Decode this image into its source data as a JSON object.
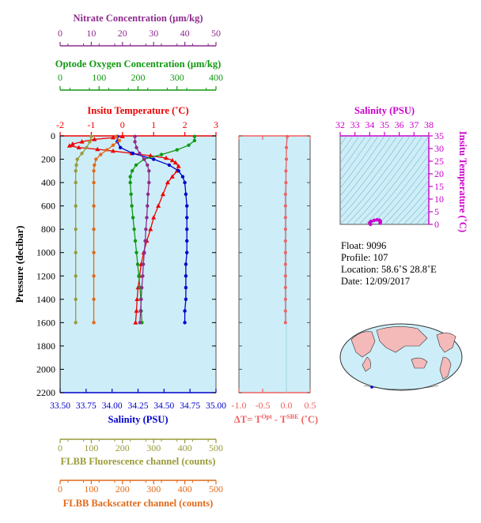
{
  "float_info": {
    "float_line": "Float:  9096",
    "profile_line": "Profile:  107",
    "location_line": "Location:  58.6˚S  28.8˚E",
    "date_line": "Date:  12/09/2017"
  },
  "colors": {
    "temperature": "#ee0000",
    "salinity": "#0000cc",
    "oxygen": "#119911",
    "nitrate": "#8e2b8e",
    "fluorescence": "#9a9a3a",
    "backscatter": "#e06a1a",
    "delta": "#f06060",
    "panel_bg": "#cdeef8",
    "ts_curve": "#cc00cc"
  },
  "chart_data": [
    {
      "type": "line",
      "name": "main-profile",
      "ylabel": "Pressure (decibar)",
      "ylim": [
        2200,
        0
      ],
      "yticks": [
        "0",
        "200",
        "400",
        "600",
        "800",
        "1000",
        "1200",
        "1400",
        "1600",
        "1800",
        "2000",
        "2200"
      ],
      "grid": false,
      "axes": {
        "nitrate": {
          "label": "Nitrate Concentration (μm/kg)",
          "range": [
            0,
            50
          ],
          "ticks": [
            "0",
            "10",
            "20",
            "30",
            "40",
            "50"
          ]
        },
        "oxygen": {
          "label": "Optode Oxygen Concentration (μm/kg)",
          "range": [
            0,
            400
          ],
          "ticks": [
            "0",
            "100",
            "200",
            "300",
            "400"
          ]
        },
        "temperature": {
          "label": "Insitu Temperature (˚C)",
          "range": [
            -2,
            3
          ],
          "ticks": [
            "-2",
            "-1",
            "0",
            "1",
            "2",
            "3"
          ]
        },
        "salinity": {
          "label": "Salinity (PSU)",
          "range": [
            33.5,
            35.0
          ],
          "ticks": [
            "33.50",
            "33.75",
            "34.00",
            "34.25",
            "34.50",
            "34.75",
            "35.00"
          ]
        },
        "fluorescence": {
          "label": "FLBB Fluorescence channel (counts)",
          "range": [
            0,
            500
          ],
          "ticks": [
            "0",
            "100",
            "200",
            "300",
            "400",
            "500"
          ]
        },
        "backscatter": {
          "label": "FLBB Backscatter channel (counts)",
          "range": [
            0,
            500
          ],
          "ticks": [
            "0",
            "100",
            "200",
            "300",
            "400",
            "500"
          ]
        }
      },
      "series": [
        {
          "key": "temperature",
          "marker": "triangle",
          "points": [
            [
              0.0,
              5
            ],
            [
              -0.3,
              15
            ],
            [
              -0.9,
              30
            ],
            [
              -1.3,
              50
            ],
            [
              -1.6,
              70
            ],
            [
              -1.7,
              85
            ],
            [
              -1.4,
              100
            ],
            [
              -0.8,
              115
            ],
            [
              -0.3,
              130
            ],
            [
              0.3,
              150
            ],
            [
              0.9,
              170
            ],
            [
              1.4,
              190
            ],
            [
              1.6,
              210
            ],
            [
              1.7,
              230
            ],
            [
              1.8,
              260
            ],
            [
              1.75,
              300
            ],
            [
              1.6,
              350
            ],
            [
              1.45,
              400
            ],
            [
              1.3,
              500
            ],
            [
              1.15,
              600
            ],
            [
              1.0,
              700
            ],
            [
              0.9,
              800
            ],
            [
              0.78,
              900
            ],
            [
              0.68,
              1000
            ],
            [
              0.6,
              1100
            ],
            [
              0.55,
              1200
            ],
            [
              0.5,
              1300
            ],
            [
              0.47,
              1400
            ],
            [
              0.45,
              1500
            ],
            [
              0.42,
              1600
            ]
          ]
        },
        {
          "key": "salinity",
          "marker": "circle",
          "points": [
            [
              34.05,
              5
            ],
            [
              34.05,
              50
            ],
            [
              34.08,
              100
            ],
            [
              34.2,
              150
            ],
            [
              34.4,
              200
            ],
            [
              34.55,
              250
            ],
            [
              34.64,
              300
            ],
            [
              34.68,
              350
            ],
            [
              34.7,
              400
            ],
            [
              34.71,
              500
            ],
            [
              34.72,
              600
            ],
            [
              34.72,
              700
            ],
            [
              34.72,
              800
            ],
            [
              34.72,
              900
            ],
            [
              34.72,
              1000
            ],
            [
              34.71,
              1100
            ],
            [
              34.71,
              1200
            ],
            [
              34.71,
              1300
            ],
            [
              34.71,
              1400
            ],
            [
              34.7,
              1500
            ],
            [
              34.7,
              1600
            ]
          ]
        },
        {
          "key": "oxygen",
          "marker": "circle",
          "points": [
            [
              345,
              5
            ],
            [
              345,
              40
            ],
            [
              330,
              80
            ],
            [
              300,
              120
            ],
            [
              260,
              160
            ],
            [
              215,
              200
            ],
            [
              195,
              250
            ],
            [
              185,
              300
            ],
            [
              180,
              350
            ],
            [
              180,
              400
            ],
            [
              182,
              500
            ],
            [
              184,
              600
            ],
            [
              187,
              700
            ],
            [
              190,
              800
            ],
            [
              193,
              900
            ],
            [
              196,
              1000
            ],
            [
              199,
              1100
            ],
            [
              202,
              1200
            ],
            [
              205,
              1300
            ],
            [
              207,
              1400
            ],
            [
              208,
              1500
            ],
            [
              210,
              1600
            ]
          ]
        },
        {
          "key": "nitrate",
          "marker": "circle",
          "points": [
            [
              24,
              5
            ],
            [
              24,
              50
            ],
            [
              24.5,
              100
            ],
            [
              25.5,
              150
            ],
            [
              27,
              200
            ],
            [
              28,
              250
            ],
            [
              28.5,
              300
            ],
            [
              28.5,
              400
            ],
            [
              28.2,
              500
            ],
            [
              28,
              600
            ],
            [
              27.8,
              700
            ],
            [
              27.5,
              800
            ],
            [
              27.3,
              900
            ],
            [
              27,
              1000
            ],
            [
              26.7,
              1100
            ],
            [
              26.5,
              1200
            ],
            [
              26.2,
              1300
            ],
            [
              26,
              1400
            ],
            [
              25.8,
              1500
            ],
            [
              25.6,
              1600
            ]
          ]
        },
        {
          "key": "fluorescence",
          "marker": "circle",
          "points": [
            [
              100,
              5
            ],
            [
              95,
              50
            ],
            [
              85,
              100
            ],
            [
              70,
              150
            ],
            [
              55,
              200
            ],
            [
              52,
              250
            ],
            [
              50,
              300
            ],
            [
              50,
              400
            ],
            [
              50,
              600
            ],
            [
              50,
              800
            ],
            [
              50,
              1000
            ],
            [
              50,
              1200
            ],
            [
              50,
              1400
            ],
            [
              50,
              1600
            ]
          ]
        },
        {
          "key": "backscatter",
          "marker": "circle",
          "points": [
            [
              180,
              5
            ],
            [
              190,
              40
            ],
            [
              170,
              80
            ],
            [
              150,
              120
            ],
            [
              130,
              160
            ],
            [
              115,
              200
            ],
            [
              110,
              250
            ],
            [
              108,
              300
            ],
            [
              108,
              400
            ],
            [
              108,
              600
            ],
            [
              108,
              800
            ],
            [
              108,
              1000
            ],
            [
              108,
              1200
            ],
            [
              108,
              1400
            ],
            [
              108,
              1600
            ]
          ]
        }
      ]
    },
    {
      "type": "line",
      "name": "delta-temperature",
      "xlabel_main": "ΔT= T",
      "xlabel_sup1": "Opt",
      "xlabel_mid": " - T",
      "xlabel_sup2": "SBE",
      "xlabel_end": " (˚C)",
      "xlim": [
        -1.0,
        0.5
      ],
      "xticks": [
        "-1.0",
        "-0.5",
        "0.0",
        "0.5"
      ],
      "ylim": [
        2200,
        0
      ],
      "points": [
        [
          0.02,
          5
        ],
        [
          0.0,
          100
        ],
        [
          0.0,
          200
        ],
        [
          -0.01,
          300
        ],
        [
          -0.01,
          400
        ],
        [
          -0.02,
          500
        ],
        [
          -0.02,
          600
        ],
        [
          -0.02,
          700
        ],
        [
          -0.02,
          800
        ],
        [
          -0.02,
          900
        ],
        [
          -0.02,
          1000
        ],
        [
          -0.02,
          1100
        ],
        [
          -0.02,
          1200
        ],
        [
          -0.02,
          1300
        ],
        [
          -0.02,
          1400
        ],
        [
          -0.02,
          1500
        ],
        [
          -0.02,
          1600
        ]
      ]
    },
    {
      "type": "line",
      "name": "ts-diagram",
      "xlabel": "Salinity (PSU)",
      "ylabel": "Insitu Temperature (˚C)",
      "xlim": [
        32,
        38
      ],
      "ylim": [
        0,
        35
      ],
      "xticks": [
        "32",
        "33",
        "34",
        "35",
        "36",
        "37",
        "38"
      ],
      "yticks": [
        "0",
        "5",
        "10",
        "15",
        "20",
        "25",
        "30",
        "35"
      ],
      "points": [
        [
          34.05,
          0.0
        ],
        [
          34.0,
          0.6
        ],
        [
          34.1,
          1.2
        ],
        [
          34.3,
          1.6
        ],
        [
          34.5,
          1.8
        ],
        [
          34.65,
          1.7
        ],
        [
          34.72,
          1.3
        ],
        [
          34.72,
          0.8
        ],
        [
          34.7,
          0.5
        ]
      ]
    }
  ],
  "map": {
    "type": "world-map"
  }
}
